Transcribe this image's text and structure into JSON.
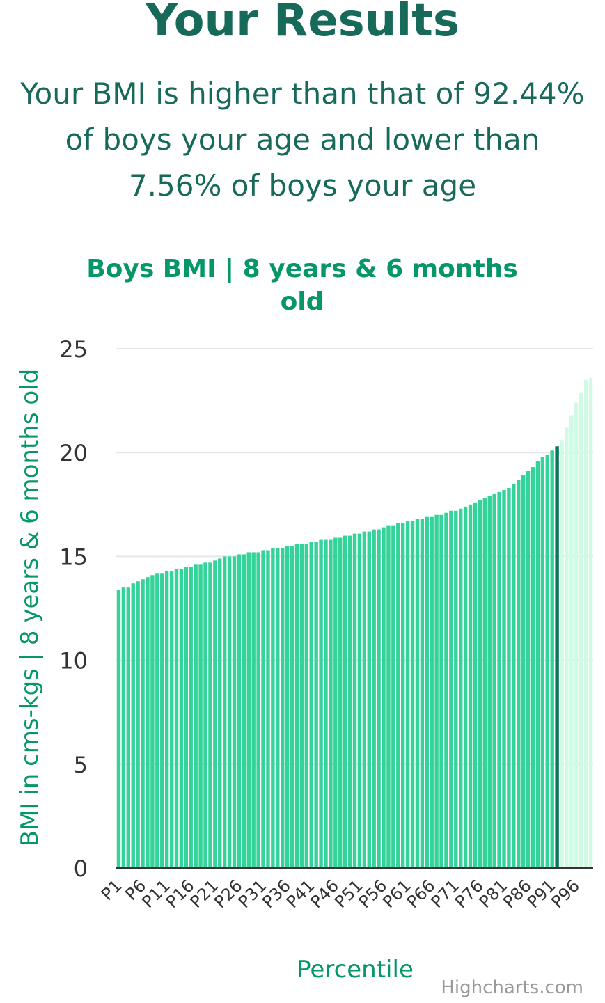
{
  "page": {
    "title": "Your Results",
    "summary_lines": [
      "Your BMI is higher than that of 92.44%",
      "of boys your age and lower than",
      "7.56% of boys your age"
    ]
  },
  "credits": "Highcharts.com",
  "colors": {
    "heading": "#17695a",
    "chart_title": "#059669",
    "bar": "#34d399",
    "bar_highlight": "#047857",
    "bar_above": "#d1fae5",
    "grid": "#e6e6e6",
    "axis_text": "#333333"
  },
  "chart_data": {
    "type": "bar",
    "title_lines": [
      "Boys BMI | 8 years & 6 months",
      "old"
    ],
    "xlabel": "Percentile",
    "ylabel": "BMI in cms-kgs | 8 years & 6 months old",
    "ylim": [
      0,
      25
    ],
    "yticks": [
      0,
      5,
      10,
      15,
      20,
      25
    ],
    "grid": true,
    "highlight_category": "P92",
    "x_tick_labels": [
      "P1",
      "P6",
      "P11",
      "P16",
      "P21",
      "P26",
      "P31",
      "P36",
      "P41",
      "P46",
      "P51",
      "P56",
      "P61",
      "P66",
      "P71",
      "P76",
      "P81",
      "P86",
      "P91",
      "P96"
    ],
    "categories": [
      "P1",
      "P2",
      "P3",
      "P4",
      "P5",
      "P6",
      "P7",
      "P8",
      "P9",
      "P10",
      "P11",
      "P12",
      "P13",
      "P14",
      "P15",
      "P16",
      "P17",
      "P18",
      "P19",
      "P20",
      "P21",
      "P22",
      "P23",
      "P24",
      "P25",
      "P26",
      "P27",
      "P28",
      "P29",
      "P30",
      "P31",
      "P32",
      "P33",
      "P34",
      "P35",
      "P36",
      "P37",
      "P38",
      "P39",
      "P40",
      "P41",
      "P42",
      "P43",
      "P44",
      "P45",
      "P46",
      "P47",
      "P48",
      "P49",
      "P50",
      "P51",
      "P52",
      "P53",
      "P54",
      "P55",
      "P56",
      "P57",
      "P58",
      "P59",
      "P60",
      "P61",
      "P62",
      "P63",
      "P64",
      "P65",
      "P66",
      "P67",
      "P68",
      "P69",
      "P70",
      "P71",
      "P72",
      "P73",
      "P74",
      "P75",
      "P76",
      "P77",
      "P78",
      "P79",
      "P80",
      "P81",
      "P82",
      "P83",
      "P84",
      "P85",
      "P86",
      "P87",
      "P88",
      "P89",
      "P90",
      "P91",
      "P92",
      "P93",
      "P94",
      "P95",
      "P96",
      "P97",
      "P98",
      "P99"
    ],
    "values": [
      13.4,
      13.5,
      13.5,
      13.7,
      13.8,
      13.9,
      14.0,
      14.1,
      14.2,
      14.2,
      14.3,
      14.3,
      14.4,
      14.4,
      14.5,
      14.5,
      14.6,
      14.6,
      14.7,
      14.7,
      14.8,
      14.9,
      15.0,
      15.0,
      15.0,
      15.1,
      15.1,
      15.2,
      15.2,
      15.2,
      15.3,
      15.3,
      15.4,
      15.4,
      15.4,
      15.5,
      15.5,
      15.6,
      15.6,
      15.6,
      15.7,
      15.7,
      15.8,
      15.8,
      15.8,
      15.9,
      15.9,
      16.0,
      16.0,
      16.1,
      16.1,
      16.2,
      16.2,
      16.3,
      16.3,
      16.4,
      16.5,
      16.5,
      16.6,
      16.6,
      16.7,
      16.7,
      16.8,
      16.8,
      16.9,
      16.9,
      17.0,
      17.0,
      17.1,
      17.2,
      17.2,
      17.3,
      17.4,
      17.5,
      17.6,
      17.7,
      17.8,
      17.9,
      18.0,
      18.1,
      18.2,
      18.3,
      18.5,
      18.7,
      18.9,
      19.1,
      19.3,
      19.6,
      19.8,
      19.9,
      20.1,
      20.3,
      20.6,
      21.2,
      21.8,
      22.4,
      22.9,
      23.5,
      23.6
    ]
  }
}
